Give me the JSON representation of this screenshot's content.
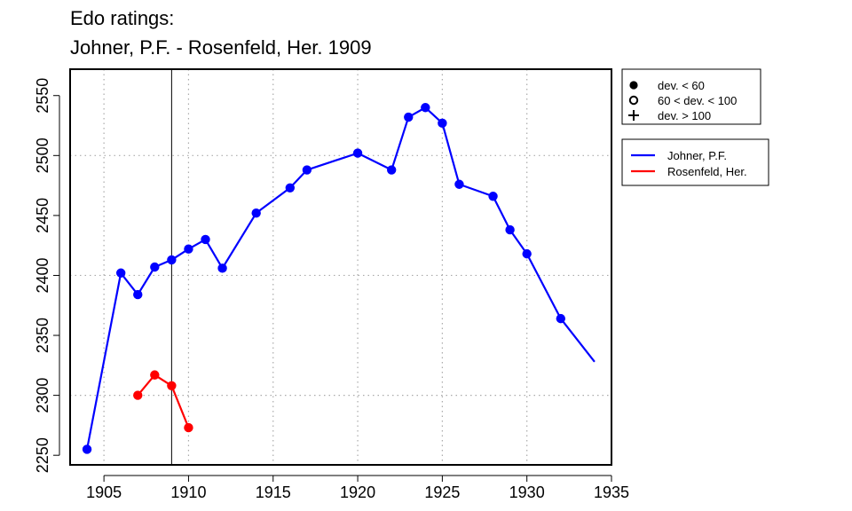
{
  "chart_data": {
    "type": "line",
    "title": [
      "Edo ratings:",
      "Johner, P.F. - Rosenfeld, Her. 1909"
    ],
    "xlim": [
      1903,
      1935
    ],
    "ylim": [
      2242,
      2572
    ],
    "x_ticks": [
      1905,
      1910,
      1915,
      1920,
      1925,
      1930,
      1935
    ],
    "y_ticks": [
      2250,
      2300,
      2350,
      2400,
      2450,
      2500,
      2550
    ],
    "x_grid": [
      1905,
      1910,
      1915,
      1920,
      1925,
      1930
    ],
    "y_grid": [
      2300,
      2400,
      2500
    ],
    "vline": 1909,
    "grid": true,
    "series": [
      {
        "name": "Johner, P.F.",
        "color": "#0000ff",
        "points": [
          {
            "x": 1904,
            "y": 2255,
            "marker": "dot"
          },
          {
            "x": 1906,
            "y": 2402,
            "marker": "dot"
          },
          {
            "x": 1907,
            "y": 2384,
            "marker": "dot"
          },
          {
            "x": 1908,
            "y": 2407,
            "marker": "dot"
          },
          {
            "x": 1909,
            "y": 2413,
            "marker": "dot"
          },
          {
            "x": 1910,
            "y": 2422,
            "marker": "dot"
          },
          {
            "x": 1911,
            "y": 2430,
            "marker": "dot"
          },
          {
            "x": 1912,
            "y": 2406,
            "marker": "dot"
          },
          {
            "x": 1914,
            "y": 2452,
            "marker": "dot"
          },
          {
            "x": 1916,
            "y": 2473,
            "marker": "dot"
          },
          {
            "x": 1917,
            "y": 2488,
            "marker": "dot"
          },
          {
            "x": 1920,
            "y": 2502,
            "marker": "dot"
          },
          {
            "x": 1922,
            "y": 2488,
            "marker": "dot"
          },
          {
            "x": 1923,
            "y": 2532,
            "marker": "dot"
          },
          {
            "x": 1924,
            "y": 2540,
            "marker": "dot"
          },
          {
            "x": 1925,
            "y": 2527,
            "marker": "dot"
          },
          {
            "x": 1926,
            "y": 2476,
            "marker": "dot"
          },
          {
            "x": 1928,
            "y": 2466,
            "marker": "dot"
          },
          {
            "x": 1929,
            "y": 2438,
            "marker": "dot"
          },
          {
            "x": 1930,
            "y": 2418,
            "marker": "dot"
          },
          {
            "x": 1932,
            "y": 2364,
            "marker": "dot"
          },
          {
            "x": 1934,
            "y": 2328,
            "marker": "none"
          }
        ]
      },
      {
        "name": "Rosenfeld, Her.",
        "color": "#ff0000",
        "points": [
          {
            "x": 1907,
            "y": 2300,
            "marker": "dot"
          },
          {
            "x": 1908,
            "y": 2317,
            "marker": "dot"
          },
          {
            "x": 1909,
            "y": 2308,
            "marker": "dot"
          },
          {
            "x": 1910,
            "y": 2273,
            "marker": "dot"
          }
        ]
      }
    ],
    "marker_legend": [
      {
        "symbol": "filled-circle",
        "label": "dev. < 60"
      },
      {
        "symbol": "open-circle",
        "label": "60 < dev. < 100"
      },
      {
        "symbol": "plus",
        "label": "dev. > 100"
      }
    ],
    "legend_position": "right"
  }
}
